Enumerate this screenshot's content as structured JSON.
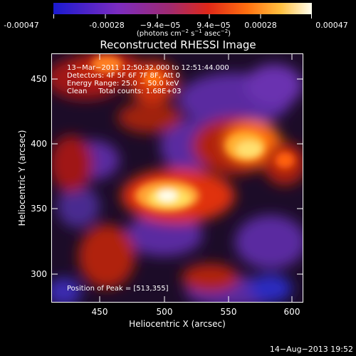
{
  "colorbar": {
    "tick_labels": [
      "-0.00047",
      "-0.00028",
      "−9.4e−05",
      "9.4e−05",
      "0.00028",
      "0.00047"
    ],
    "tick_values": [
      -0.00047,
      -0.00028,
      -9.4e-05,
      9.4e-05,
      0.00028,
      0.00047
    ],
    "range": [
      -0.00047,
      0.00047
    ],
    "units_main": "(photons cm",
    "units_exp1": "−2",
    "units_mid": " s",
    "units_exp2": "−1",
    "units_mid2": " asec",
    "units_exp3": "−2",
    "units_end": ")",
    "colors": [
      "#1e1ecc",
      "#7a2ab8",
      "#b03060",
      "#e6281e",
      "#ff7a14",
      "#ffd24a",
      "#fffff0"
    ]
  },
  "plot": {
    "title": "Reconstructed RHESSI Image",
    "xlabel": "Heliocentric X (arcsec)",
    "ylabel": "Heliocentric Y (arcsec)",
    "xlim": [
      415,
      607
    ],
    "ylim": [
      290,
      474
    ],
    "xticks": [
      "450",
      "500",
      "550",
      "600"
    ],
    "yticks": [
      "300",
      "350",
      "400",
      "450"
    ],
    "info_lines": [
      "13−Mar−2011 12:50:32.000 to 12:51:44.000",
      "Detectors: 4F 5F 6F 7F 8F, Att 0",
      "Energy Range: 25.0 − 50.0 keV",
      "Clean     Total counts: 1.68E+03"
    ],
    "peak_label": "Position of Peak = [513,355]",
    "peak": [
      513,
      355
    ]
  },
  "footer": {
    "timestamp": "14−Aug−2013 19:52"
  }
}
